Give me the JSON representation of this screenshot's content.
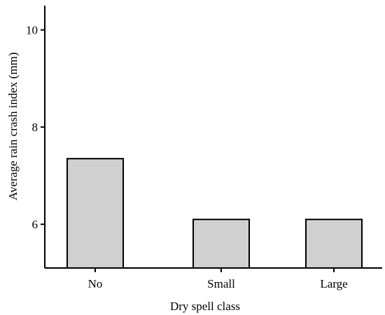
{
  "chart_data": {
    "type": "bar",
    "title": "",
    "xlabel": "Dry spell class",
    "ylabel": "Average rain crash index (mm)",
    "categories": [
      "No",
      "Small",
      "Large"
    ],
    "values": [
      7.35,
      6.1,
      6.1
    ],
    "ylim": [
      5.1,
      10.5
    ],
    "yticks": [
      6,
      8,
      10
    ],
    "ytick_labels": [
      "6",
      "8",
      "10"
    ],
    "grid": false,
    "legend": "none",
    "colors": {
      "bar_fill": "#d0d0d0",
      "bar_stroke": "#000000",
      "axis": "#000000"
    }
  }
}
